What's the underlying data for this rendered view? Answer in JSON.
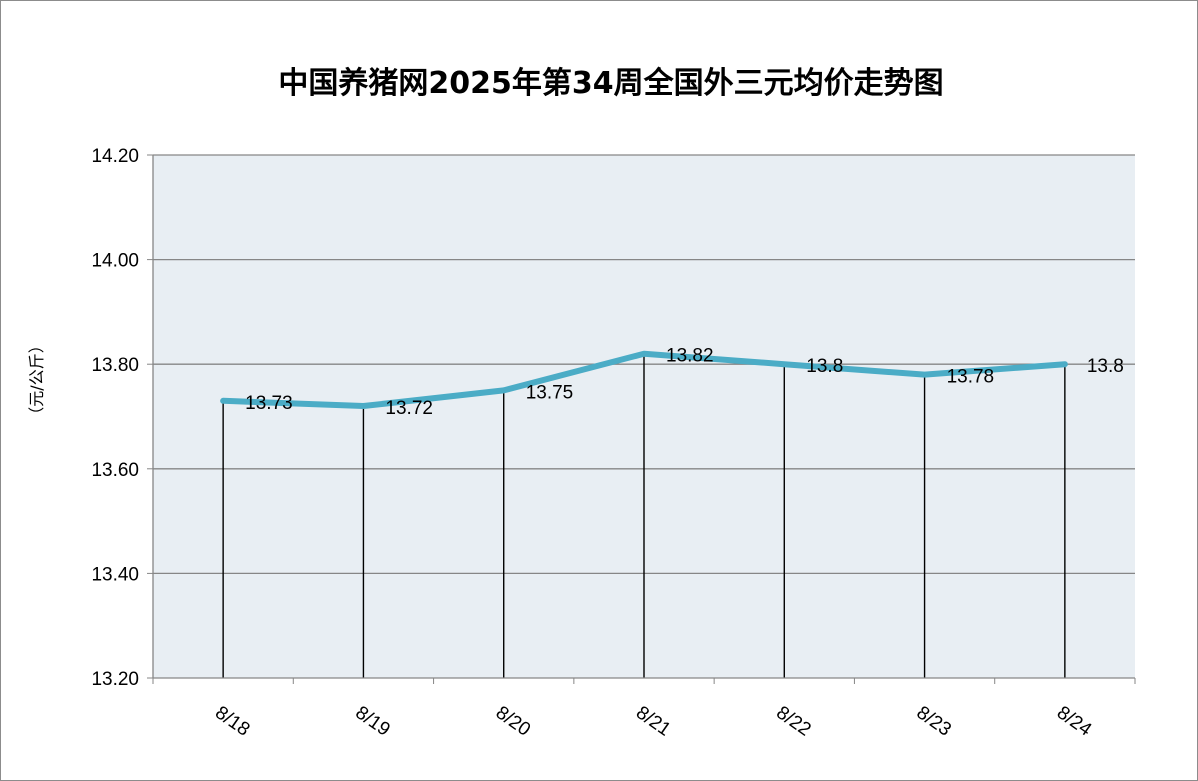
{
  "chart_data": {
    "type": "line",
    "title": "中国养猪网2025年第34周全国外三元均价走势图",
    "ylabel": "（元/公斤）",
    "xlabel": "",
    "categories": [
      "8/18",
      "8/19",
      "8/20",
      "8/21",
      "8/22",
      "8/23",
      "8/24"
    ],
    "series": [
      {
        "values": [
          13.73,
          13.72,
          13.75,
          13.82,
          13.8,
          13.78,
          13.8
        ]
      }
    ],
    "data_labels": [
      "13.73",
      "13.72",
      "13.75",
      "13.82",
      "13.8",
      "13.78",
      "13.8"
    ],
    "ylim": [
      13.2,
      14.2
    ],
    "yticks": [
      "13.20",
      "13.40",
      "13.60",
      "13.80",
      "14.00",
      "14.20"
    ],
    "grid": true,
    "drop_lines": true,
    "colors": {
      "line": "#4bacc6",
      "plot_bg": "#e8eef3",
      "grid": "#868686",
      "axis": "#868686",
      "drop_line": "#000000"
    }
  }
}
